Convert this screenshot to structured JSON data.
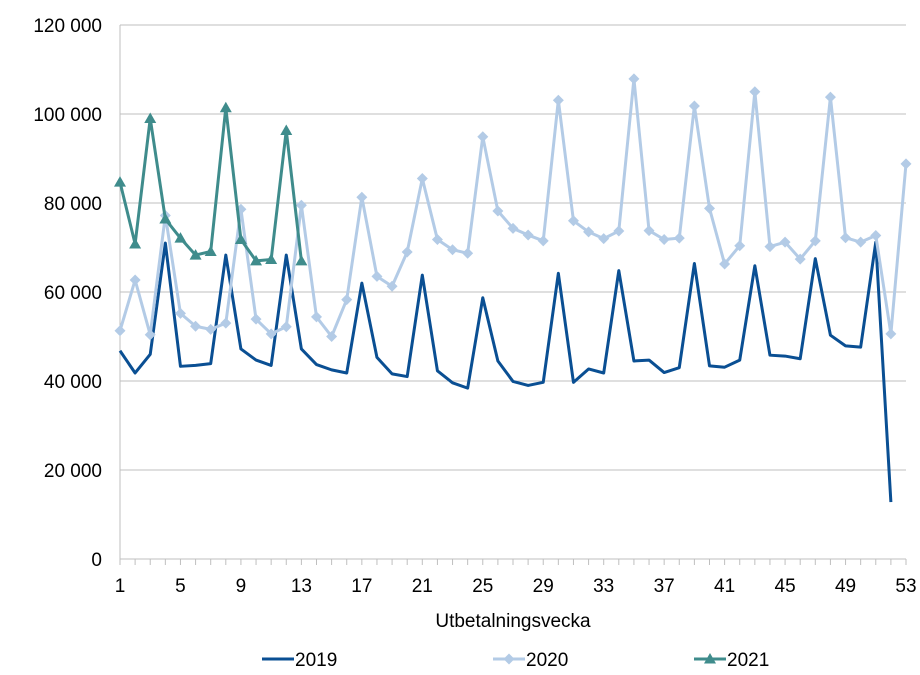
{
  "chart_data": {
    "type": "line",
    "title": "",
    "xlabel": "Utbetalningsvecka",
    "ylabel": "",
    "ylim": [
      0,
      120000
    ],
    "xlim": [
      1,
      53
    ],
    "y_ticks": [
      {
        "value": 0,
        "label": "0"
      },
      {
        "value": 20000,
        "label": "20 000"
      },
      {
        "value": 40000,
        "label": "40 000"
      },
      {
        "value": 60000,
        "label": "60 000"
      },
      {
        "value": 80000,
        "label": "80 000"
      },
      {
        "value": 100000,
        "label": "100 000"
      },
      {
        "value": 120000,
        "label": "120 000"
      }
    ],
    "x_ticks": [
      "1",
      "5",
      "9",
      "13",
      "17",
      "21",
      "25",
      "29",
      "33",
      "37",
      "41",
      "45",
      "49",
      "53"
    ],
    "grid": "horizontal",
    "legend_position": "bottom",
    "series": [
      {
        "name": "2019",
        "color": "#0a4f93",
        "marker": "none",
        "x": [
          1,
          2,
          3,
          4,
          5,
          6,
          7,
          8,
          9,
          10,
          11,
          12,
          13,
          14,
          15,
          16,
          17,
          18,
          19,
          20,
          21,
          22,
          23,
          24,
          25,
          26,
          27,
          28,
          29,
          30,
          31,
          32,
          33,
          34,
          35,
          36,
          37,
          38,
          39,
          40,
          41,
          42,
          43,
          44,
          45,
          46,
          47,
          48,
          49,
          50,
          51,
          52
        ],
        "values": [
          46800,
          41800,
          46000,
          71000,
          43300,
          43500,
          43900,
          68300,
          47200,
          44700,
          43500,
          68300,
          47200,
          43700,
          42500,
          41800,
          62000,
          45300,
          41600,
          41000,
          63800,
          42300,
          39600,
          38400,
          58700,
          44500,
          39900,
          39000,
          39700,
          64200,
          39700,
          42700,
          41800,
          64800,
          44500,
          44700,
          41900,
          43000,
          66400,
          43400,
          43100,
          44700,
          65900,
          45800,
          45600,
          45000,
          67500,
          50300,
          47900,
          47600,
          71200,
          12800
        ]
      },
      {
        "name": "2020",
        "color": "#b3cbe6",
        "marker": "diamond",
        "x": [
          1,
          2,
          3,
          4,
          5,
          6,
          7,
          8,
          9,
          10,
          11,
          12,
          13,
          14,
          15,
          16,
          17,
          18,
          19,
          20,
          21,
          22,
          23,
          24,
          25,
          26,
          27,
          28,
          29,
          30,
          31,
          32,
          33,
          34,
          35,
          36,
          37,
          38,
          39,
          40,
          41,
          42,
          43,
          44,
          45,
          46,
          47,
          48,
          49,
          50,
          51,
          52,
          53
        ],
        "values": [
          51300,
          62700,
          50400,
          77200,
          55200,
          52300,
          51600,
          53000,
          78600,
          53900,
          50600,
          52200,
          79500,
          54400,
          50000,
          58300,
          81300,
          63500,
          61300,
          69000,
          85500,
          71800,
          69500,
          68700,
          94900,
          78200,
          74300,
          72800,
          71500,
          103100,
          76000,
          73500,
          72000,
          73700,
          107900,
          73800,
          71800,
          72100,
          101800,
          78800,
          66300,
          70400,
          105000,
          70200,
          71200,
          67400,
          71500,
          103800,
          72200,
          71200,
          72700,
          50600,
          88800
        ]
      },
      {
        "name": "2021",
        "color": "#3f8c8c",
        "marker": "triangle",
        "x": [
          1,
          2,
          3,
          4,
          5,
          6,
          7,
          8,
          9,
          10,
          11,
          12,
          13
        ],
        "values": [
          84700,
          70800,
          99000,
          76400,
          72100,
          68300,
          69100,
          101400,
          71800,
          67000,
          67300,
          96300,
          67000
        ]
      }
    ]
  }
}
